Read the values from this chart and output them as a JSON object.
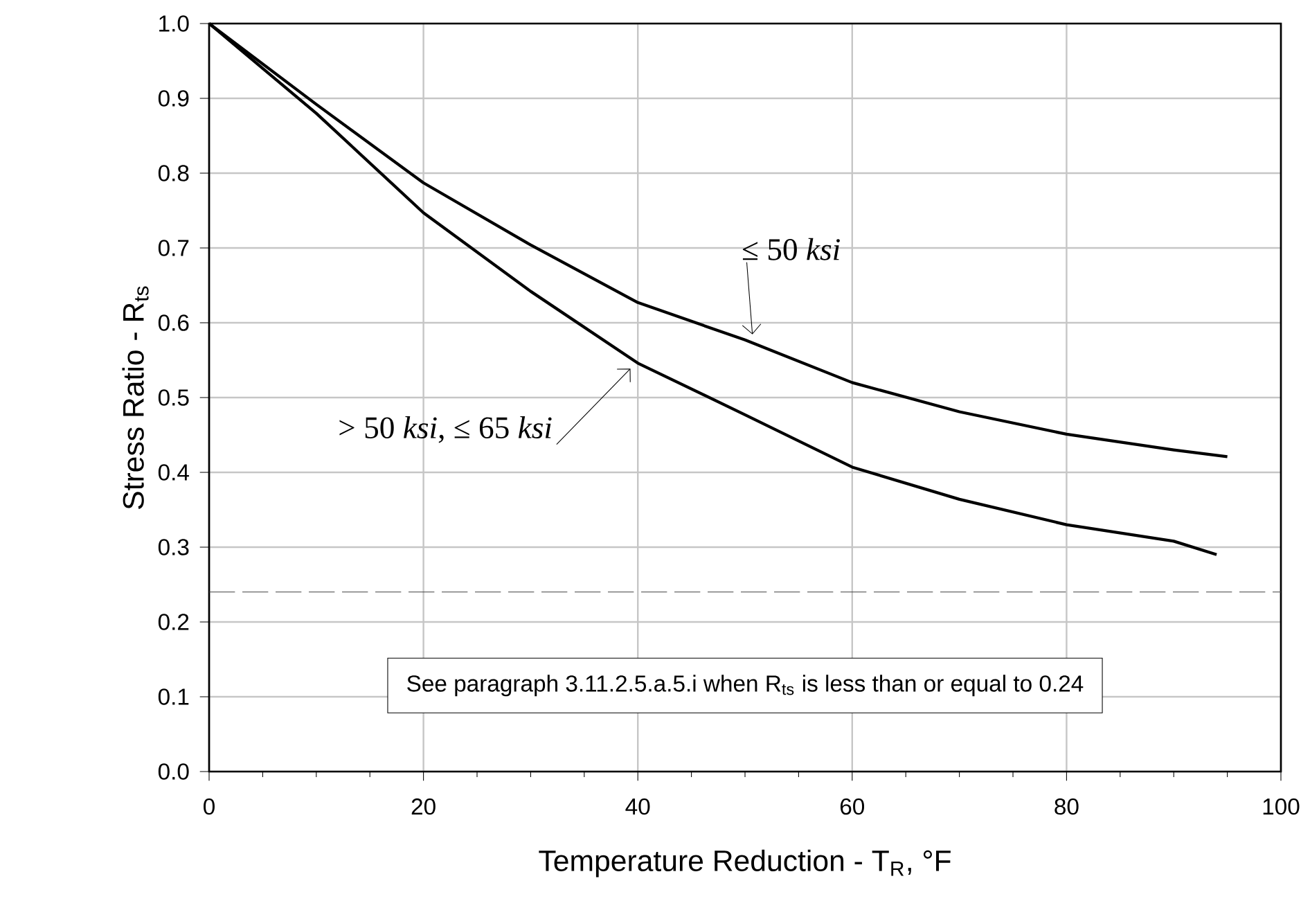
{
  "chart_data": {
    "type": "line",
    "xlabel": "Temperature Reduction - T$_{R}$, °F",
    "ylabel": "Stress Ratio - R$_{ts}$",
    "xlim": [
      0,
      100
    ],
    "xticks": [
      0,
      20,
      40,
      60,
      80,
      100
    ],
    "ylim": [
      0,
      1
    ],
    "yticks": [
      {
        "value": 0,
        "label": "0.0"
      },
      0.1,
      0.2,
      0.3,
      0.4,
      0.5,
      0.6,
      0.7,
      0.8,
      0.9,
      {
        "value": 1,
        "label": "1.0"
      }
    ],
    "grid": true,
    "legend": false,
    "marker": "none",
    "line_style": "solid",
    "series": [
      {
        "name": "≤ 50 *ksi*",
        "color": "#000000",
        "x": [
          0,
          10,
          20,
          30,
          40,
          50,
          60,
          70,
          80,
          90,
          95
        ],
        "values": [
          1.0,
          0.892,
          0.787,
          0.704,
          0.627,
          0.577,
          0.52,
          0.481,
          0.451,
          0.43,
          0.421
        ]
      },
      {
        "name": "> 50 *ksi*, ≤ 65 *ksi*",
        "color": "#000000",
        "x": [
          0,
          10,
          20,
          30,
          40,
          50,
          60,
          70,
          80,
          90,
          94
        ],
        "values": [
          1.0,
          0.88,
          0.747,
          0.642,
          0.546,
          0.477,
          0.407,
          0.364,
          0.33,
          0.308,
          0.29
        ]
      }
    ],
    "ref_lines": [
      {
        "axis": "y",
        "value": 0.24,
        "color": "#404040",
        "line_style": "dashed"
      }
    ],
    "annotations": [
      "See paragraph 3.11.2.5.a.5.i when R$_{ts}$ is less than or equal to 0.24"
    ]
  }
}
